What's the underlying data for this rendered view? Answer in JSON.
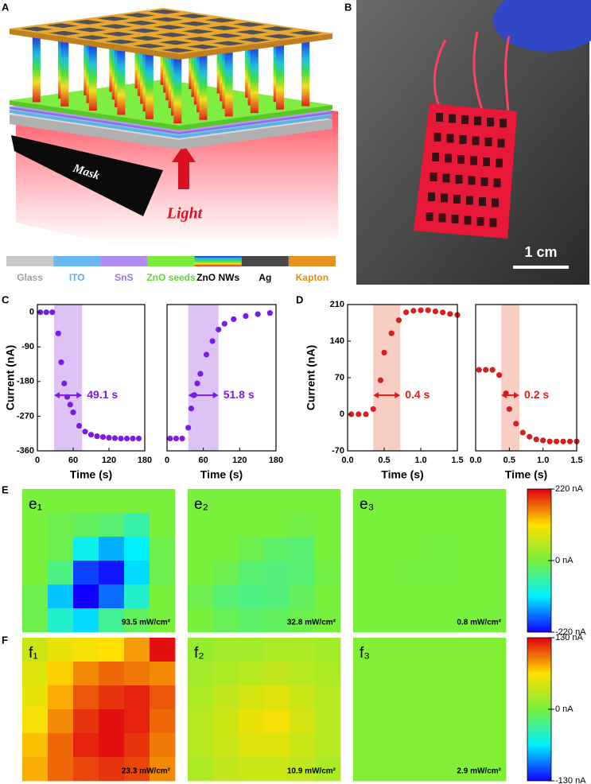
{
  "panel_labels": [
    "A",
    "B",
    "C",
    "D",
    "E",
    "F"
  ],
  "schematic": {
    "mask": "Mask",
    "light": "Light",
    "legend": [
      {
        "name": "Glass",
        "color": "#c8c8c8",
        "text_color": "#a0a0a0"
      },
      {
        "name": "ITO",
        "color": "#6ab8f0",
        "text_color": "#5ab0f0"
      },
      {
        "name": "SnS",
        "color": "#b08cf0",
        "text_color": "#a070f0"
      },
      {
        "name": "ZnO seeds",
        "color": "#7aea3c",
        "text_color": "#5ad82a"
      },
      {
        "name": "ZnO NWs",
        "gradient": [
          "#2030e0",
          "#20c0e0",
          "#40e040",
          "#f0e020",
          "#e02020"
        ],
        "text_color": "#000000"
      },
      {
        "name": "Ag",
        "color": "#4a4a4a",
        "text_color": "#000000"
      },
      {
        "name": "Kapton",
        "color": "#e89020",
        "text_color": "#e88a10"
      }
    ]
  },
  "photo": {
    "scale_bar": "1 cm"
  },
  "chart_data": [
    {
      "type": "scatter",
      "xlabel": "Time (s)",
      "ylabel": "Current (nA)",
      "color": "#7b1ce6",
      "x": [
        5,
        15,
        25,
        35,
        40,
        45,
        50,
        55,
        60,
        70,
        80,
        90,
        100,
        110,
        120,
        130,
        140,
        150,
        160,
        170
      ],
      "values": [
        0,
        0,
        0,
        -55,
        -130,
        -185,
        -220,
        -240,
        -260,
        -295,
        -310,
        -318,
        -322,
        -324,
        -326,
        -327,
        -328,
        -328,
        -328,
        -328
      ],
      "xlim": [
        0,
        180
      ],
      "ylim": [
        -360,
        20
      ],
      "xticks": [
        0,
        60,
        120,
        180
      ],
      "yticks": [
        0,
        -90,
        -180,
        -270,
        -360
      ],
      "shade": [
        28,
        75
      ],
      "shade_color": "#d6b8f2",
      "annotation": "49.1 s",
      "annotation_color": "#7b1ce6"
    },
    {
      "type": "scatter",
      "xlabel": "Time (s)",
      "color": "#7b1ce6",
      "x": [
        5,
        15,
        25,
        35,
        40,
        45,
        50,
        55,
        65,
        75,
        85,
        95,
        110,
        130,
        150,
        170
      ],
      "values": [
        -328,
        -328,
        -328,
        -300,
        -250,
        -215,
        -185,
        -160,
        -110,
        -75,
        -45,
        -30,
        -18,
        -10,
        -5,
        -2
      ],
      "xlim": [
        0,
        180
      ],
      "ylim": [
        -360,
        20
      ],
      "xticks": [
        0,
        60,
        120,
        180
      ],
      "shade": [
        35,
        85
      ],
      "shade_color": "#d6b8f2",
      "annotation": "51.8 s",
      "annotation_color": "#7b1ce6"
    },
    {
      "type": "scatter",
      "xlabel": "Time (s)",
      "ylabel": "Current (nA)",
      "color": "#d42020",
      "x": [
        0.05,
        0.15,
        0.25,
        0.35,
        0.45,
        0.5,
        0.6,
        0.7,
        0.8,
        0.9,
        1.0,
        1.1,
        1.2,
        1.3,
        1.4,
        1.5
      ],
      "values": [
        0,
        0,
        0,
        10,
        65,
        118,
        155,
        180,
        195,
        198,
        199,
        199,
        197,
        195,
        192,
        190
      ],
      "xlim": [
        0,
        1.5
      ],
      "ylim": [
        -70,
        210
      ],
      "xticks": [
        {
          "value": 0,
          "label": "0.0"
        },
        0.5,
        {
          "value": 1,
          "label": "1.0"
        },
        1.5
      ],
      "yticks": [
        -70,
        0,
        70,
        140,
        210
      ],
      "shade": [
        0.35,
        0.72
      ],
      "shade_color": "#f6c6b6",
      "annotation": "0.4 s",
      "annotation_color": "#d42020"
    },
    {
      "type": "scatter",
      "xlabel": "Time (s)",
      "color": "#d42020",
      "x": [
        0.05,
        0.15,
        0.25,
        0.35,
        0.45,
        0.5,
        0.6,
        0.7,
        0.8,
        0.9,
        1.0,
        1.1,
        1.2,
        1.3,
        1.4,
        1.5
      ],
      "values": [
        85,
        85,
        85,
        75,
        40,
        10,
        -18,
        -35,
        -43,
        -48,
        -50,
        -52,
        -52,
        -52,
        -52,
        -52
      ],
      "xlim": [
        0,
        1.5
      ],
      "ylim": [
        -70,
        210
      ],
      "xticks": [
        {
          "value": 0,
          "label": "0.0"
        },
        0.5,
        {
          "value": 1,
          "label": "1.0"
        },
        1.5
      ],
      "shade": [
        0.38,
        0.65
      ],
      "shade_color": "#f6c6b6",
      "annotation": "0.2 s",
      "annotation_color": "#d42020"
    },
    {
      "type": "heatmap",
      "zlim": [
        -220,
        220
      ],
      "zticks": [
        {
          "value": 220,
          "label": "220 nA"
        },
        {
          "value": 0,
          "label": "0 nA"
        },
        {
          "value": -220,
          "label": "-220 nA"
        }
      ],
      "colormap": [
        "#1200ff",
        "#00f0ff",
        "#78f03c",
        "#ffe000",
        "#e00010"
      ],
      "panels": [
        {
          "label": "e₁",
          "annotation": "93.5 mW/cm²",
          "values": [
            [
              0,
              0,
              0,
              0,
              0,
              0
            ],
            [
              0,
              -10,
              -20,
              -30,
              -60,
              0
            ],
            [
              0,
              -10,
              -100,
              -140,
              -110,
              -10
            ],
            [
              0,
              -40,
              -190,
              -210,
              -120,
              -10
            ],
            [
              -10,
              -130,
              -220,
              -170,
              -80,
              0
            ],
            [
              -10,
              -80,
              -120,
              -50,
              -20,
              0
            ]
          ]
        },
        {
          "label": "e₂",
          "annotation": "32.8 mW/cm²",
          "values": [
            [
              0,
              0,
              0,
              0,
              0,
              0
            ],
            [
              0,
              0,
              0,
              0,
              -5,
              0
            ],
            [
              0,
              0,
              -10,
              -25,
              -30,
              0
            ],
            [
              0,
              -10,
              -30,
              -35,
              -30,
              -5
            ],
            [
              -10,
              -30,
              -40,
              -35,
              -20,
              0
            ],
            [
              0,
              -15,
              -25,
              -20,
              -10,
              0
            ]
          ]
        },
        {
          "label": "e₃",
          "annotation": "0.8 mW/cm²",
          "values": [
            [
              0,
              0,
              0,
              0,
              0,
              0
            ],
            [
              0,
              0,
              0,
              0,
              0,
              0
            ],
            [
              0,
              0,
              0,
              -2,
              0,
              0
            ],
            [
              0,
              0,
              -2,
              -2,
              0,
              0
            ],
            [
              0,
              0,
              0,
              0,
              0,
              0
            ],
            [
              0,
              0,
              0,
              0,
              0,
              0
            ]
          ]
        }
      ]
    },
    {
      "type": "heatmap",
      "zlim": [
        -130,
        130
      ],
      "zticks": [
        {
          "value": 130,
          "label": "130 nA"
        },
        {
          "value": 0,
          "label": "0 nA"
        },
        {
          "value": -130,
          "label": "-130 nA"
        }
      ],
      "colormap": [
        "#1200ff",
        "#00f0ff",
        "#78f03c",
        "#ffe000",
        "#e00010"
      ],
      "panels": [
        {
          "label": "f₁",
          "annotation": "23.3 mW/cm²",
          "values": [
            [
              40,
              55,
              60,
              65,
              85,
              125
            ],
            [
              50,
              70,
              90,
              100,
              95,
              90
            ],
            [
              55,
              80,
              105,
              115,
              120,
              105
            ],
            [
              60,
              90,
              115,
              125,
              120,
              100
            ],
            [
              75,
              100,
              120,
              125,
              115,
              95
            ],
            [
              80,
              100,
              110,
              115,
              110,
              90
            ]
          ]
        },
        {
          "label": "f₂",
          "annotation": "10.9 mW/cm²",
          "values": [
            [
              15,
              20,
              20,
              25,
              25,
              20
            ],
            [
              20,
              25,
              30,
              35,
              30,
              25
            ],
            [
              25,
              35,
              45,
              50,
              40,
              30
            ],
            [
              30,
              40,
              55,
              60,
              45,
              30
            ],
            [
              30,
              40,
              50,
              50,
              40,
              30
            ],
            [
              25,
              35,
              40,
              40,
              35,
              25
            ]
          ]
        },
        {
          "label": "f₃",
          "annotation": "2.9 mW/cm²",
          "values": [
            [
              5,
              5,
              5,
              5,
              5,
              5
            ],
            [
              5,
              5,
              5,
              5,
              5,
              5
            ],
            [
              5,
              5,
              5,
              5,
              5,
              5
            ],
            [
              5,
              5,
              5,
              5,
              5,
              5
            ],
            [
              5,
              5,
              5,
              5,
              5,
              5
            ],
            [
              5,
              5,
              5,
              5,
              5,
              5
            ]
          ]
        }
      ]
    }
  ]
}
